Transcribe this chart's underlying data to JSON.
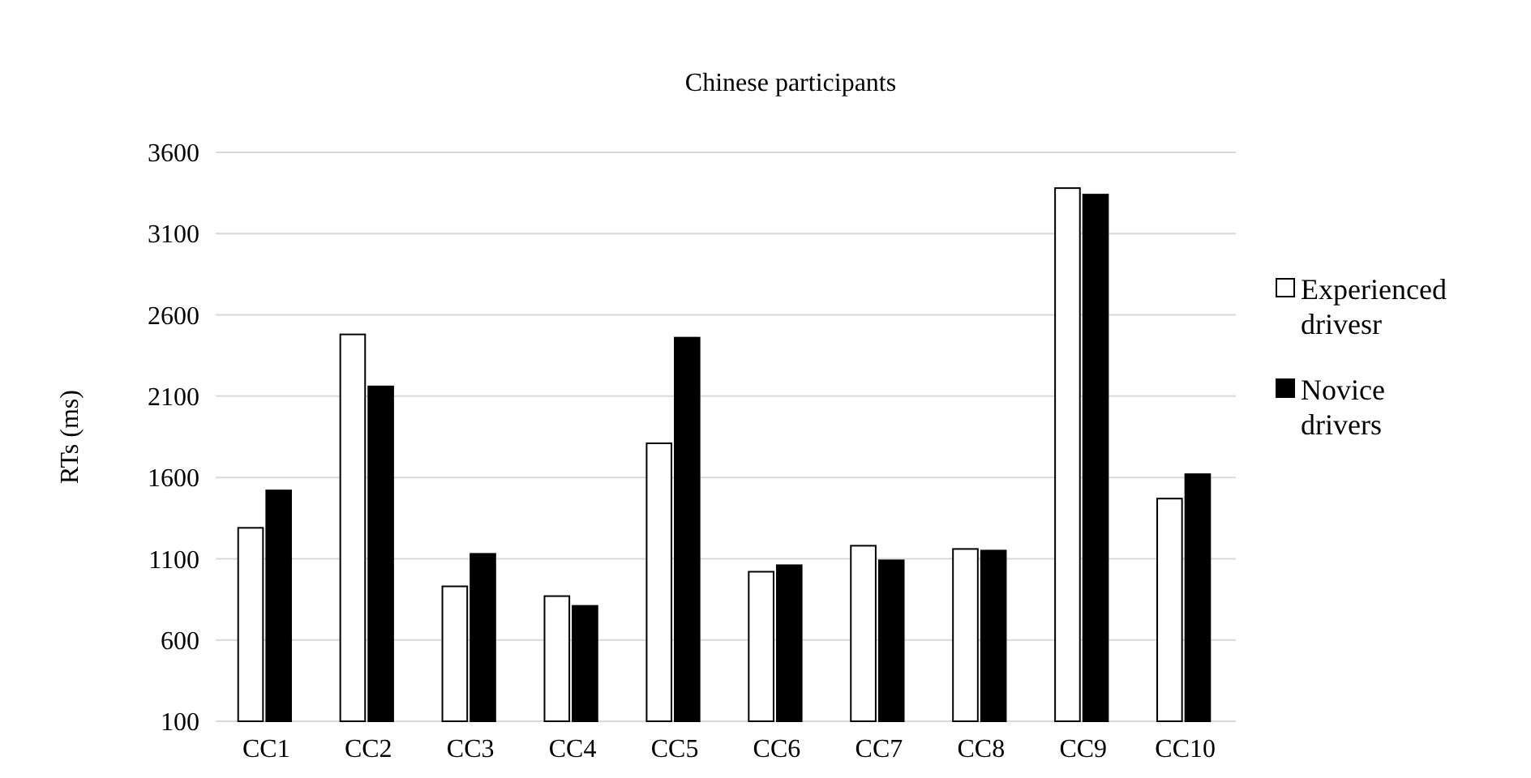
{
  "chart_data": {
    "type": "bar",
    "title": "Chinese participants",
    "ylabel": "RTs (ms)",
    "categories": [
      "CC1",
      "CC2",
      "CC3",
      "CC4",
      "CC5",
      "CC6",
      "CC7",
      "CC8",
      "CC9",
      "CC10"
    ],
    "series": [
      {
        "name": "Experienced drivesr",
        "color": "#ffffff",
        "values": [
          1290,
          2480,
          930,
          870,
          1810,
          1020,
          1180,
          1160,
          3380,
          1470
        ]
      },
      {
        "name": "Novice drivers",
        "color": "#000000",
        "values": [
          1520,
          2160,
          1130,
          810,
          2460,
          1060,
          1090,
          1150,
          3340,
          1620
        ]
      }
    ],
    "ylim": [
      100,
      3600
    ],
    "yticks": [
      100,
      600,
      1100,
      1600,
      2100,
      2600,
      3100,
      3600
    ],
    "grid": "y",
    "legend": "right"
  }
}
